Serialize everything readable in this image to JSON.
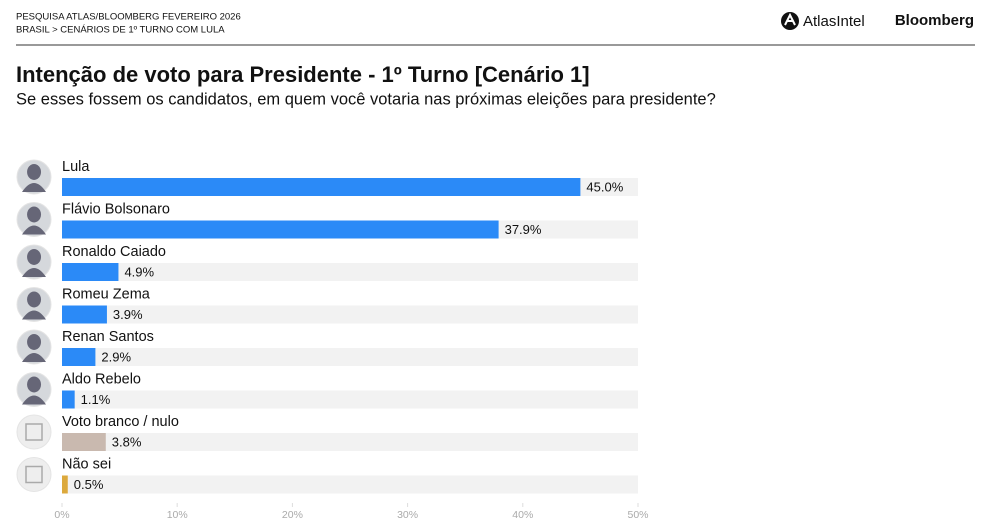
{
  "header": {
    "source": "PESQUISA ATLAS/BLOOMBERG FEVEREIRO 2026",
    "breadcrumb": "BRASIL > CENÁRIOS DE 1º TURNO COM LULA",
    "logo_left": "AtlasIntel",
    "logo_right": "Bloomberg"
  },
  "chart_data": {
    "type": "hbar",
    "title": "Intenção de voto para Presidente - 1º Turno [Cenário 1]",
    "subtitle": "Se esses fossem os candidatos, em quem você votaria nas próximas eleições para presidente?",
    "categories": [
      "Lula",
      "Flávio Bolsonaro",
      "Ronaldo Caiado",
      "Romeu Zema",
      "Renan Santos",
      "Aldo Rebelo",
      "Voto branco / nulo",
      "Não sei"
    ],
    "values": [
      45.0,
      37.9,
      4.9,
      3.9,
      2.9,
      1.1,
      3.8,
      0.5
    ],
    "value_labels": [
      "45.0%",
      "37.9%",
      "4.9%",
      "3.9%",
      "2.9%",
      "1.1%",
      "3.8%",
      "0.5%"
    ],
    "colors": [
      "#2b8af7",
      "#2b8af7",
      "#2b8af7",
      "#2b8af7",
      "#2b8af7",
      "#2b8af7",
      "#c9b9af",
      "#dca93c"
    ],
    "xlim": [
      0,
      50
    ],
    "xticks": [
      {
        "value": 0,
        "label": "0%"
      },
      {
        "value": 10,
        "label": "10%"
      },
      {
        "value": 20,
        "label": "20%"
      },
      {
        "value": 30,
        "label": "30%"
      },
      {
        "value": 40,
        "label": "40%"
      },
      {
        "value": 50,
        "label": "50%"
      }
    ]
  }
}
